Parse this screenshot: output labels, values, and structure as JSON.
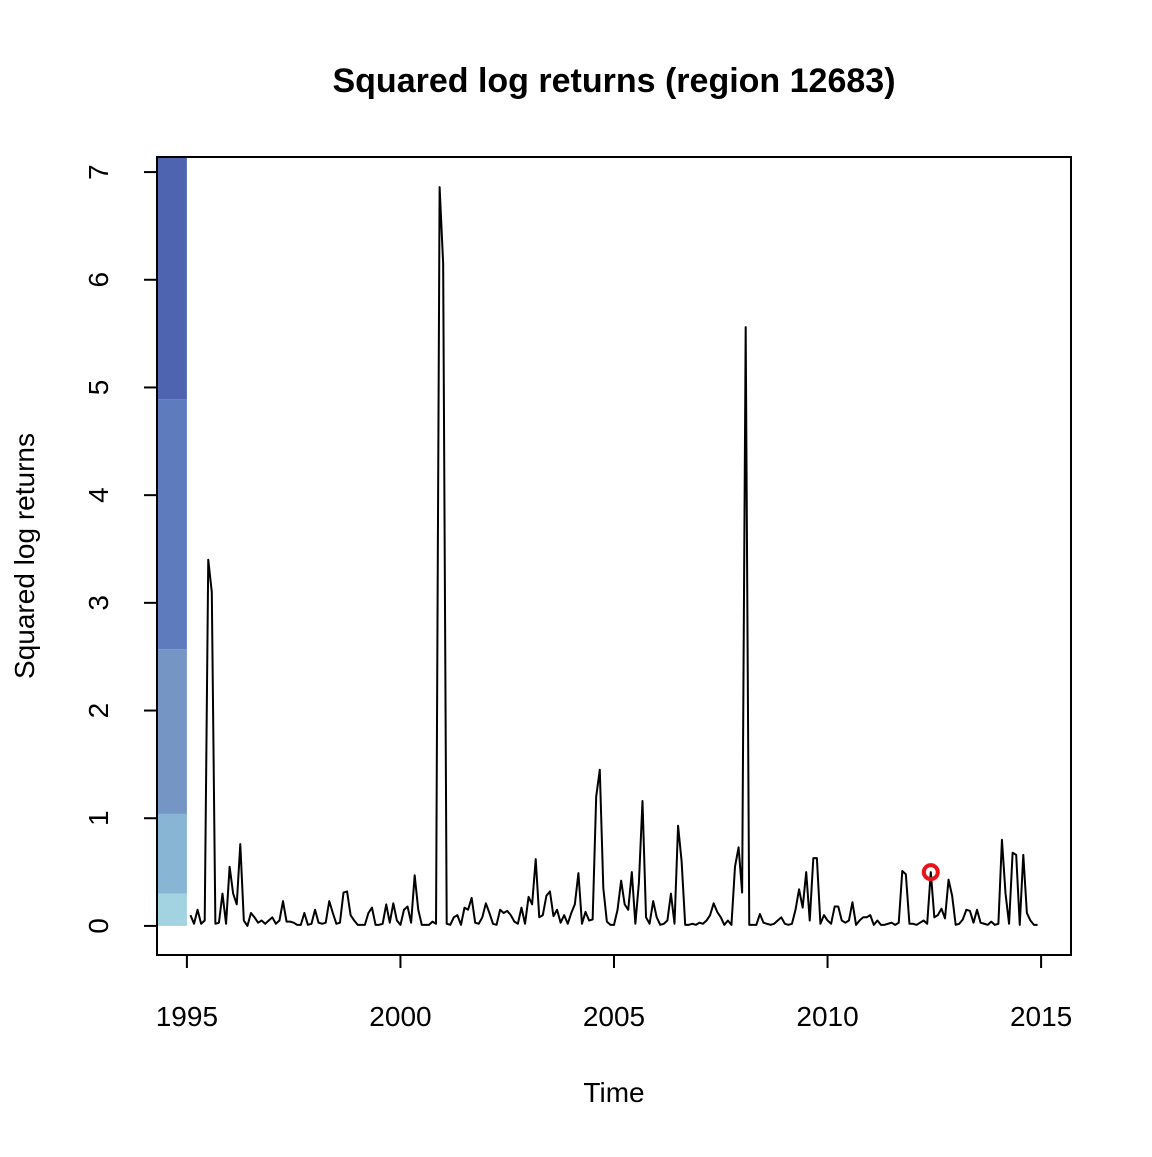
{
  "chart_data": {
    "type": "line",
    "title": "Squared log returns (region 12683)",
    "x_label": "Time",
    "y_label": "Squared log returns",
    "color": "#000000",
    "xlim": [
      1994.3,
      2015.7
    ],
    "ylim": [
      -0.27,
      7.14
    ],
    "xticks": [
      1995,
      2000,
      2005,
      2010,
      2015
    ],
    "yticks": [
      0,
      1,
      2,
      3,
      4,
      5,
      6,
      7
    ],
    "color_bands": {
      "xrange": [
        1994.3,
        1995
      ],
      "breaks": [
        0,
        0.3,
        1.04,
        2.57,
        4.89,
        7.14
      ],
      "colors": [
        "#a3d3e0",
        "#87b5d3",
        "#7596c4",
        "#5e7bbe",
        "#4f64b0"
      ]
    },
    "highlight": {
      "x": 2012.417,
      "y": 0.5,
      "color": "#e8141b"
    },
    "x": [
      1995.083,
      1995.167,
      1995.25,
      1995.333,
      1995.417,
      1995.5,
      1995.583,
      1995.667,
      1995.75,
      1995.833,
      1995.917,
      1996,
      1996.083,
      1996.167,
      1996.25,
      1996.333,
      1996.417,
      1996.5,
      1996.583,
      1996.667,
      1996.75,
      1996.833,
      1996.917,
      1997,
      1997.083,
      1997.167,
      1997.25,
      1997.333,
      1997.417,
      1997.5,
      1997.583,
      1997.667,
      1997.75,
      1997.833,
      1997.917,
      1998,
      1998.083,
      1998.167,
      1998.25,
      1998.333,
      1998.417,
      1998.5,
      1998.583,
      1998.667,
      1998.75,
      1998.833,
      1998.917,
      1999,
      1999.083,
      1999.167,
      1999.25,
      1999.333,
      1999.417,
      1999.5,
      1999.583,
      1999.667,
      1999.75,
      1999.833,
      1999.917,
      2000,
      2000.083,
      2000.167,
      2000.25,
      2000.333,
      2000.417,
      2000.5,
      2000.583,
      2000.667,
      2000.75,
      2000.833,
      2000.917,
      2001,
      2001.083,
      2001.167,
      2001.25,
      2001.333,
      2001.417,
      2001.5,
      2001.583,
      2001.667,
      2001.75,
      2001.833,
      2001.917,
      2002,
      2002.083,
      2002.167,
      2002.25,
      2002.333,
      2002.417,
      2002.5,
      2002.583,
      2002.667,
      2002.75,
      2002.833,
      2002.917,
      2003,
      2003.083,
      2003.167,
      2003.25,
      2003.333,
      2003.417,
      2003.5,
      2003.583,
      2003.667,
      2003.75,
      2003.833,
      2003.917,
      2004,
      2004.083,
      2004.167,
      2004.25,
      2004.333,
      2004.417,
      2004.5,
      2004.583,
      2004.667,
      2004.75,
      2004.833,
      2004.917,
      2005,
      2005.083,
      2005.167,
      2005.25,
      2005.333,
      2005.417,
      2005.5,
      2005.583,
      2005.667,
      2005.75,
      2005.833,
      2005.917,
      2006,
      2006.083,
      2006.167,
      2006.25,
      2006.333,
      2006.417,
      2006.5,
      2006.583,
      2006.667,
      2006.75,
      2006.833,
      2006.917,
      2007,
      2007.083,
      2007.167,
      2007.25,
      2007.333,
      2007.417,
      2007.5,
      2007.583,
      2007.667,
      2007.75,
      2007.833,
      2007.917,
      2008,
      2008.083,
      2008.167,
      2008.25,
      2008.333,
      2008.417,
      2008.5,
      2008.583,
      2008.667,
      2008.75,
      2008.833,
      2008.917,
      2009,
      2009.083,
      2009.167,
      2009.25,
      2009.333,
      2009.417,
      2009.5,
      2009.583,
      2009.667,
      2009.75,
      2009.833,
      2009.917,
      2010,
      2010.083,
      2010.167,
      2010.25,
      2010.333,
      2010.417,
      2010.5,
      2010.583,
      2010.667,
      2010.75,
      2010.833,
      2010.917,
      2011,
      2011.083,
      2011.167,
      2011.25,
      2011.333,
      2011.417,
      2011.5,
      2011.583,
      2011.667,
      2011.75,
      2011.833,
      2011.917,
      2012,
      2012.083,
      2012.167,
      2012.25,
      2012.333,
      2012.417,
      2012.5,
      2012.583,
      2012.667,
      2012.75,
      2012.833,
      2012.917,
      2013,
      2013.083,
      2013.167,
      2013.25,
      2013.333,
      2013.417,
      2013.5,
      2013.583,
      2013.667,
      2013.75,
      2013.833,
      2013.917,
      2014,
      2014.083,
      2014.167,
      2014.25,
      2014.333,
      2014.417,
      2014.5,
      2014.583,
      2014.667,
      2014.75,
      2014.833,
      2014.917
    ],
    "values": [
      0.1,
      0.02,
      0.15,
      0.02,
      0.05,
      3.4,
      3.1,
      0.02,
      0.03,
      0.3,
      0.02,
      0.55,
      0.3,
      0.2,
      0.76,
      0.05,
      0.0,
      0.12,
      0.08,
      0.03,
      0.05,
      0.02,
      0.05,
      0.08,
      0.02,
      0.05,
      0.23,
      0.04,
      0.04,
      0.03,
      0.01,
      0.01,
      0.12,
      0.01,
      0.02,
      0.15,
      0.03,
      0.02,
      0.03,
      0.23,
      0.12,
      0.02,
      0.03,
      0.31,
      0.32,
      0.1,
      0.05,
      0.01,
      0.01,
      0.01,
      0.12,
      0.17,
      0.01,
      0.01,
      0.02,
      0.2,
      0.03,
      0.21,
      0.05,
      0.01,
      0.15,
      0.18,
      0.03,
      0.47,
      0.15,
      0.01,
      0.01,
      0.01,
      0.04,
      0.02,
      6.86,
      6.15,
      0.02,
      0.01,
      0.08,
      0.1,
      0.01,
      0.17,
      0.15,
      0.26,
      0.03,
      0.02,
      0.08,
      0.21,
      0.12,
      0.02,
      0.01,
      0.15,
      0.12,
      0.14,
      0.1,
      0.04,
      0.02,
      0.17,
      0.02,
      0.27,
      0.2,
      0.62,
      0.08,
      0.1,
      0.28,
      0.32,
      0.09,
      0.15,
      0.03,
      0.1,
      0.02,
      0.12,
      0.2,
      0.49,
      0.02,
      0.13,
      0.05,
      0.06,
      1.2,
      1.45,
      0.35,
      0.04,
      0.01,
      0.01,
      0.15,
      0.42,
      0.2,
      0.15,
      0.5,
      0.02,
      0.4,
      1.16,
      0.08,
      0.02,
      0.23,
      0.08,
      0.01,
      0.02,
      0.05,
      0.3,
      0.02,
      0.93,
      0.6,
      0.01,
      0.01,
      0.02,
      0.01,
      0.03,
      0.02,
      0.05,
      0.1,
      0.21,
      0.13,
      0.08,
      0.01,
      0.05,
      0.01,
      0.55,
      0.73,
      0.31,
      5.56,
      0.01,
      0.01,
      0.01,
      0.11,
      0.03,
      0.02,
      0.01,
      0.02,
      0.05,
      0.08,
      0.02,
      0.01,
      0.02,
      0.15,
      0.34,
      0.17,
      0.5,
      0.05,
      0.63,
      0.63,
      0.02,
      0.1,
      0.05,
      0.02,
      0.18,
      0.18,
      0.05,
      0.03,
      0.05,
      0.22,
      0.01,
      0.05,
      0.08,
      0.08,
      0.1,
      0.01,
      0.05,
      0.01,
      0.01,
      0.02,
      0.03,
      0.01,
      0.03,
      0.51,
      0.48,
      0.02,
      0.02,
      0.01,
      0.03,
      0.05,
      0.02,
      0.5,
      0.08,
      0.1,
      0.16,
      0.07,
      0.43,
      0.28,
      0.01,
      0.02,
      0.06,
      0.15,
      0.14,
      0.03,
      0.15,
      0.03,
      0.02,
      0.01,
      0.04,
      0.01,
      0.02,
      0.8,
      0.3,
      0.02,
      0.68,
      0.66,
      0.01,
      0.66,
      0.12,
      0.05,
      0.01,
      0.01
    ]
  }
}
